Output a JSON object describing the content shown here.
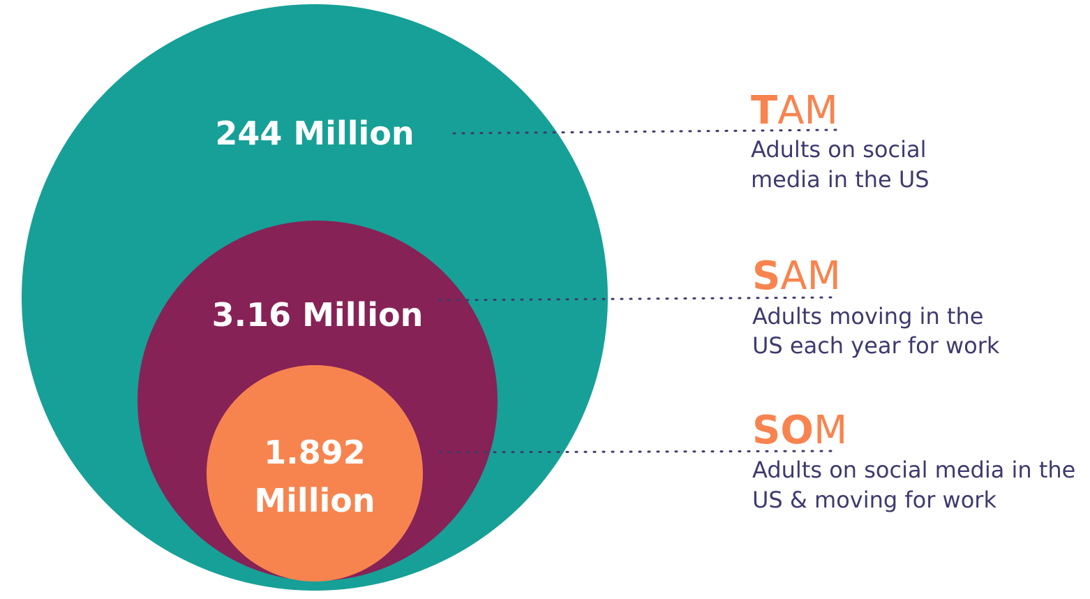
{
  "colors": {
    "tam_circle": "#17a097",
    "sam_circle": "#862256",
    "som_circle": "#f7844f",
    "title_accent": "#f7844f",
    "description_text": "#3e3a6e",
    "value_text": "#ffffff"
  },
  "tiers": {
    "tam": {
      "value": "244 Million",
      "title_lead": "T",
      "title_rest": "AM",
      "description_lines": [
        "Adults on social",
        "media in the US"
      ]
    },
    "sam": {
      "value": "3.16 Million",
      "title_lead": "S",
      "title_rest": "AM",
      "description_lines": [
        "Adults moving in the",
        "US each year for work"
      ]
    },
    "som": {
      "value_lines": [
        "1.892",
        "Million"
      ],
      "title_lead": "SO",
      "title_rest": "M",
      "description_lines": [
        "Adults on social media in the",
        "US & moving for work"
      ]
    }
  }
}
